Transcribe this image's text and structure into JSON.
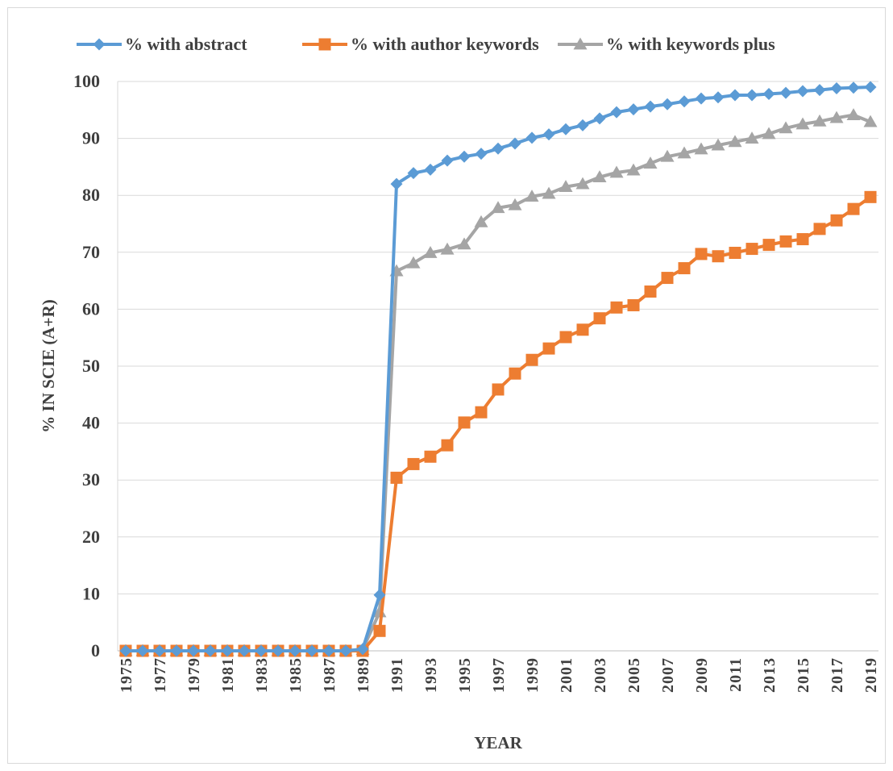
{
  "chart_data": {
    "type": "line",
    "title": "",
    "xlabel": "YEAR",
    "ylabel": "% IN SCIE (A+R)",
    "ylim": [
      0,
      100
    ],
    "yticks": [
      0,
      10,
      20,
      30,
      40,
      50,
      60,
      70,
      80,
      90,
      100
    ],
    "x": [
      1975,
      1976,
      1977,
      1978,
      1979,
      1980,
      1981,
      1982,
      1983,
      1984,
      1985,
      1986,
      1987,
      1988,
      1989,
      1990,
      1991,
      1992,
      1993,
      1994,
      1995,
      1996,
      1997,
      1998,
      1999,
      2000,
      2001,
      2002,
      2003,
      2004,
      2005,
      2006,
      2007,
      2008,
      2009,
      2010,
      2011,
      2012,
      2013,
      2014,
      2015,
      2016,
      2017,
      2018,
      2019
    ],
    "xtick_labels": [
      "1975",
      "1977",
      "1979",
      "1981",
      "1983",
      "1985",
      "1987",
      "1989",
      "1991",
      "1993",
      "1995",
      "1997",
      "1999",
      "2001",
      "2003",
      "2005",
      "2007",
      "2009",
      "2011",
      "2013",
      "2015",
      "2017",
      "2019"
    ],
    "grid": true,
    "legend_position": "top",
    "series": [
      {
        "name": "% with abstract",
        "color": "#5b9bd5",
        "marker": "diamond",
        "values": [
          0,
          0,
          0,
          0,
          0,
          0,
          0,
          0,
          0,
          0,
          0,
          0,
          0,
          0,
          0.3,
          9.8,
          82.0,
          83.9,
          84.5,
          86.1,
          86.8,
          87.3,
          88.2,
          89.1,
          90.1,
          90.7,
          91.6,
          92.3,
          93.5,
          94.6,
          95.1,
          95.6,
          96.0,
          96.5,
          97.0,
          97.2,
          97.6,
          97.6,
          97.8,
          98.0,
          98.3,
          98.5,
          98.8,
          98.9,
          99.0
        ]
      },
      {
        "name": "% with author keywords",
        "color": "#ed7d31",
        "marker": "square",
        "values": [
          0,
          0,
          0,
          0,
          0,
          0,
          0,
          0,
          0,
          0,
          0,
          0,
          0,
          0,
          0,
          3.5,
          30.4,
          32.8,
          34.1,
          36.1,
          40.1,
          41.9,
          45.9,
          48.7,
          51.1,
          53.1,
          55.1,
          56.4,
          58.4,
          60.3,
          60.7,
          63.1,
          65.5,
          67.2,
          69.7,
          69.3,
          69.9,
          70.6,
          71.3,
          71.9,
          72.3,
          74.1,
          75.6,
          77.6,
          79.7
        ]
      },
      {
        "name": "% with keywords plus",
        "color": "#a5a5a5",
        "marker": "triangle",
        "values": [
          0,
          0,
          0,
          0,
          0,
          0,
          0,
          0,
          0,
          0,
          0,
          0,
          0,
          0,
          0.2,
          6.8,
          66.7,
          68.1,
          69.9,
          70.5,
          71.4,
          75.3,
          77.8,
          78.3,
          79.8,
          80.3,
          81.5,
          82.0,
          83.2,
          84.0,
          84.4,
          85.6,
          86.8,
          87.4,
          88.1,
          88.8,
          89.4,
          90.0,
          90.8,
          91.8,
          92.5,
          93.0,
          93.6,
          94.1,
          92.9
        ]
      }
    ]
  }
}
